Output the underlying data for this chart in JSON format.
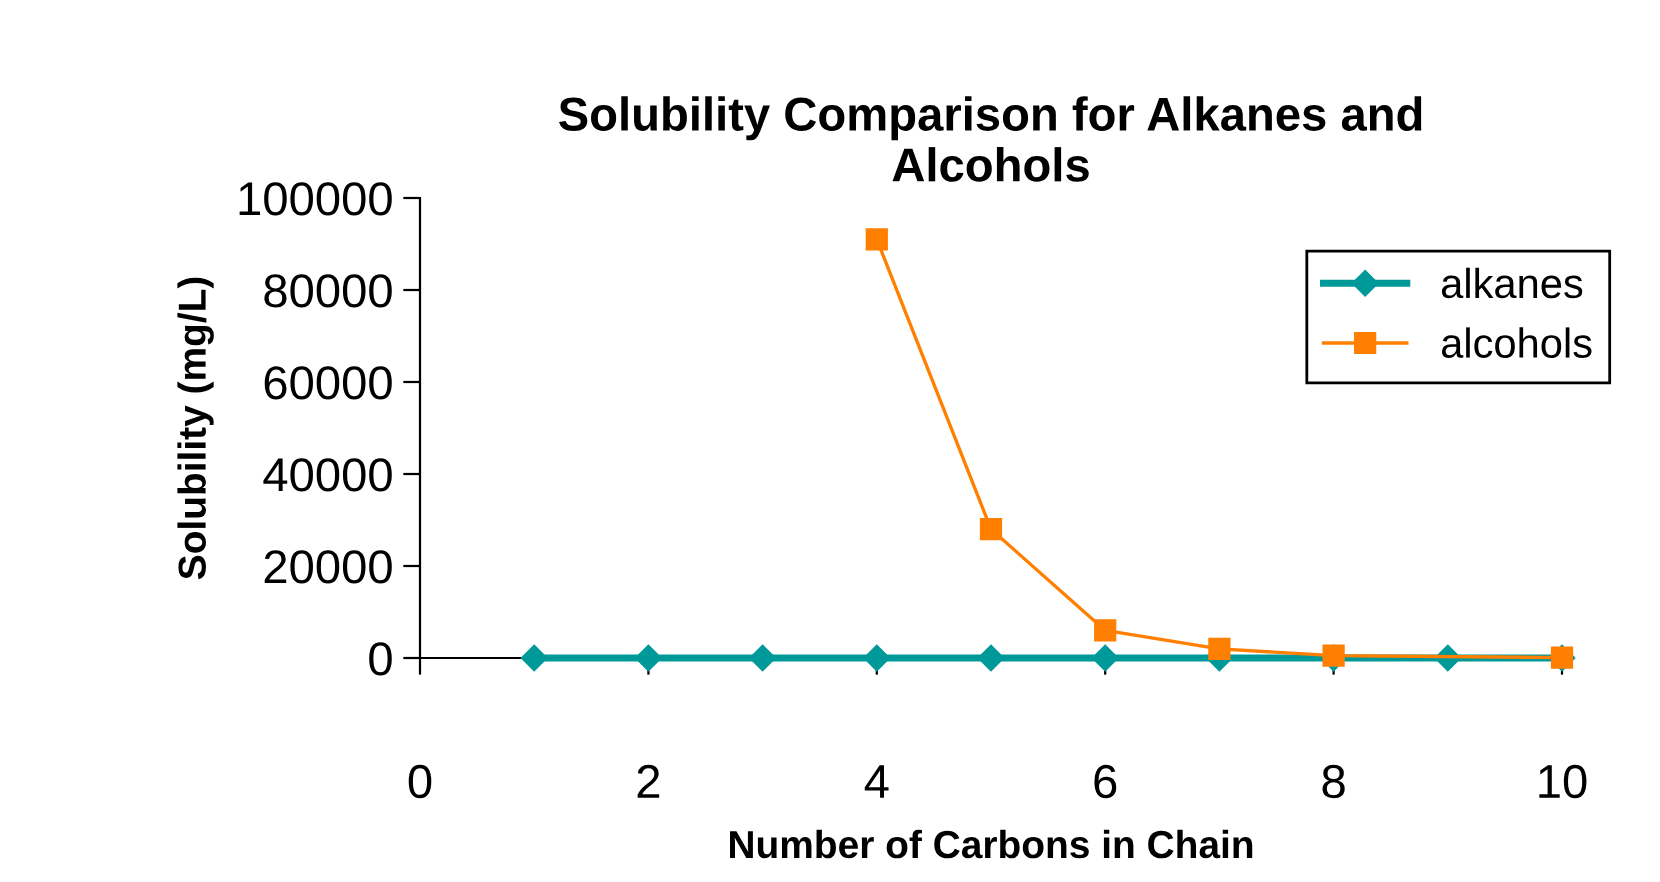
{
  "chart_data": {
    "type": "line",
    "title": "Solubility Comparison for Alkanes and\nAlcohols",
    "xlabel": "Number of Carbons in Chain",
    "ylabel": "Solubility (mg/L)",
    "series": [
      {
        "name": "alkanes",
        "color": "#009999",
        "marker": "diamond",
        "x": [
          1,
          2,
          3,
          4,
          5,
          6,
          7,
          8,
          9,
          10
        ],
        "values": [
          0,
          0,
          0,
          0,
          0,
          0,
          0,
          0,
          0,
          0
        ]
      },
      {
        "name": "alcohols",
        "color": "#ff7f00",
        "marker": "square",
        "x": [
          4,
          5,
          6,
          7,
          8,
          10
        ],
        "values": [
          91000,
          28000,
          6000,
          2000,
          500,
          100
        ]
      }
    ],
    "xlim": [
      0,
      10
    ],
    "xticks": [
      0,
      2,
      4,
      6,
      8,
      10
    ],
    "ylim": [
      0,
      100000
    ],
    "yticks": [
      0,
      20000,
      40000,
      60000,
      80000,
      100000
    ],
    "grid": false,
    "legend": "top right",
    "line_style": "solid"
  }
}
